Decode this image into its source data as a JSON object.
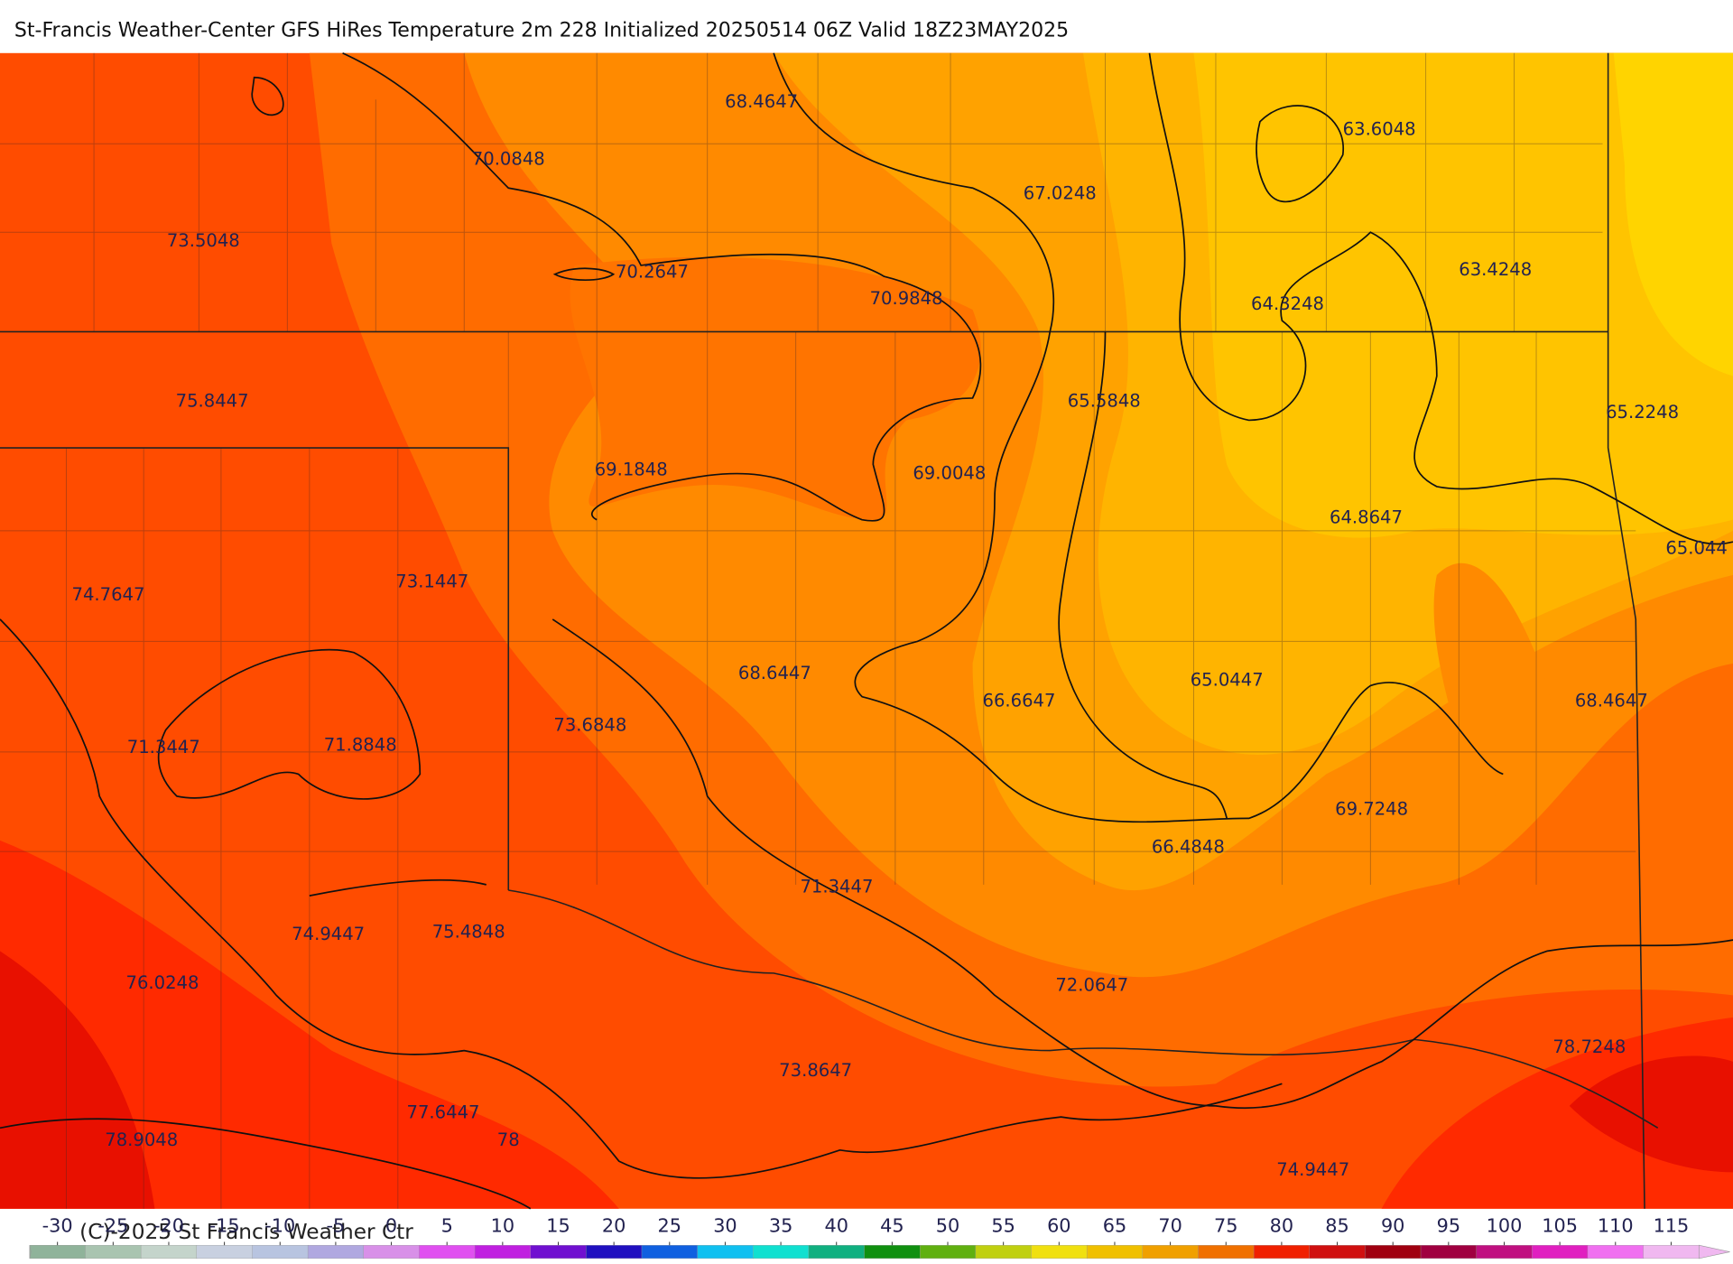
{
  "title": "St-Francis Weather-Center GFS HiRes Temperature 2m  228 Initialized 20250514 06Z Valid 18Z23MAY2025",
  "map_labels": [
    "73.5048",
    "70.0848",
    "68.4647",
    "67.0248",
    "63.6048",
    "70.2647",
    "70.9848",
    "64.3248",
    "63.4248",
    "75.8447",
    "65.5848",
    "65.2248",
    "69.1848",
    "69.0048",
    "64.8647",
    "65.044",
    "74.7647",
    "73.1447",
    "68.6447",
    "66.6647",
    "65.0447",
    "68.4647",
    "73.6848",
    "71.3447",
    "71.8848",
    "69.7248",
    "66.4848",
    "71.3447",
    "74.9447",
    "75.4848",
    "76.0248",
    "72.0647",
    "78.7248",
    "73.8647",
    "77.6447",
    "78",
    "78.9048",
    "74.9447"
  ],
  "colorbar": {
    "ticks": [
      -30,
      -25,
      -20,
      -15,
      -10,
      -5,
      0,
      5,
      10,
      15,
      20,
      25,
      30,
      35,
      40,
      45,
      50,
      55,
      60,
      65,
      70,
      75,
      80,
      85,
      90,
      95,
      100,
      105,
      110,
      115
    ],
    "colors": [
      "#8fb39a",
      "#a9c4b0",
      "#c4d4cb",
      "#c8d0e0",
      "#b8c4e0",
      "#b0a8e0",
      "#d890e8",
      "#e050f0",
      "#c020e0",
      "#7010d0",
      "#2010c0",
      "#1060e0",
      "#10c0f0",
      "#10e0d0",
      "#10b080",
      "#109010",
      "#60b010",
      "#c0d010",
      "#f0e010",
      "#f0c000",
      "#f0a000",
      "#f07000",
      "#f02000",
      "#d01010",
      "#a00010",
      "#a00040",
      "#c01080",
      "#e020c0",
      "#f070f0",
      "#f0b8f0"
    ]
  },
  "copyright": "(C)-2025 St Francis Weather Ctr"
}
